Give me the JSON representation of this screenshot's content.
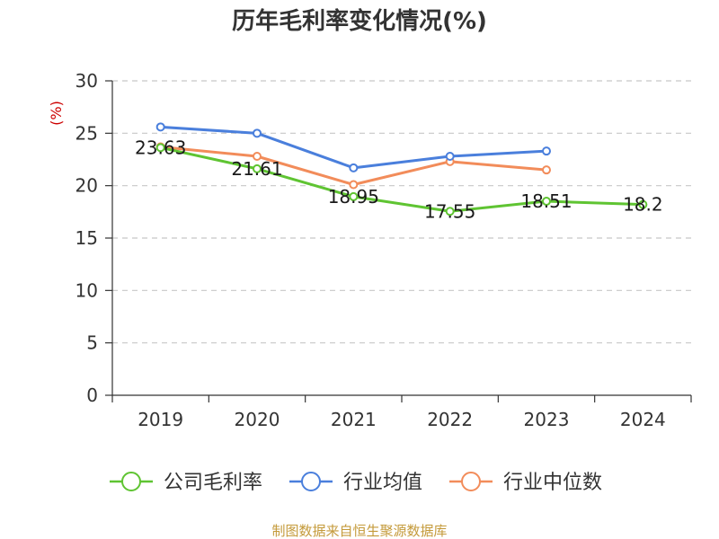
{
  "chart_data": {
    "type": "line",
    "title": "历年毛利率变化情况(%)",
    "unit_label": "(%)",
    "categories": [
      "2019",
      "2020",
      "2021",
      "2022",
      "2023",
      "2024"
    ],
    "ylim": [
      0,
      30
    ],
    "yticks": [
      "0",
      "5",
      "10",
      "15",
      "20",
      "25",
      "30"
    ],
    "grid": true,
    "legend_position": "bottom",
    "series": [
      {
        "name": "公司毛利率",
        "color": "#5fc432",
        "values": [
          23.63,
          21.61,
          18.95,
          17.55,
          18.51,
          18.2
        ],
        "labels": [
          "23.63",
          "21.61",
          "18.95",
          "17.55",
          "18.51",
          "18.2"
        ]
      },
      {
        "name": "行业均值",
        "color": "#4a7fdc",
        "values": [
          25.6,
          25.0,
          21.7,
          22.8,
          23.3,
          null
        ]
      },
      {
        "name": "行业中位数",
        "color": "#f28c5a",
        "values": [
          23.7,
          22.8,
          20.1,
          22.3,
          21.5,
          null
        ]
      }
    ],
    "source": "制图数据来自恒生聚源数据库"
  }
}
